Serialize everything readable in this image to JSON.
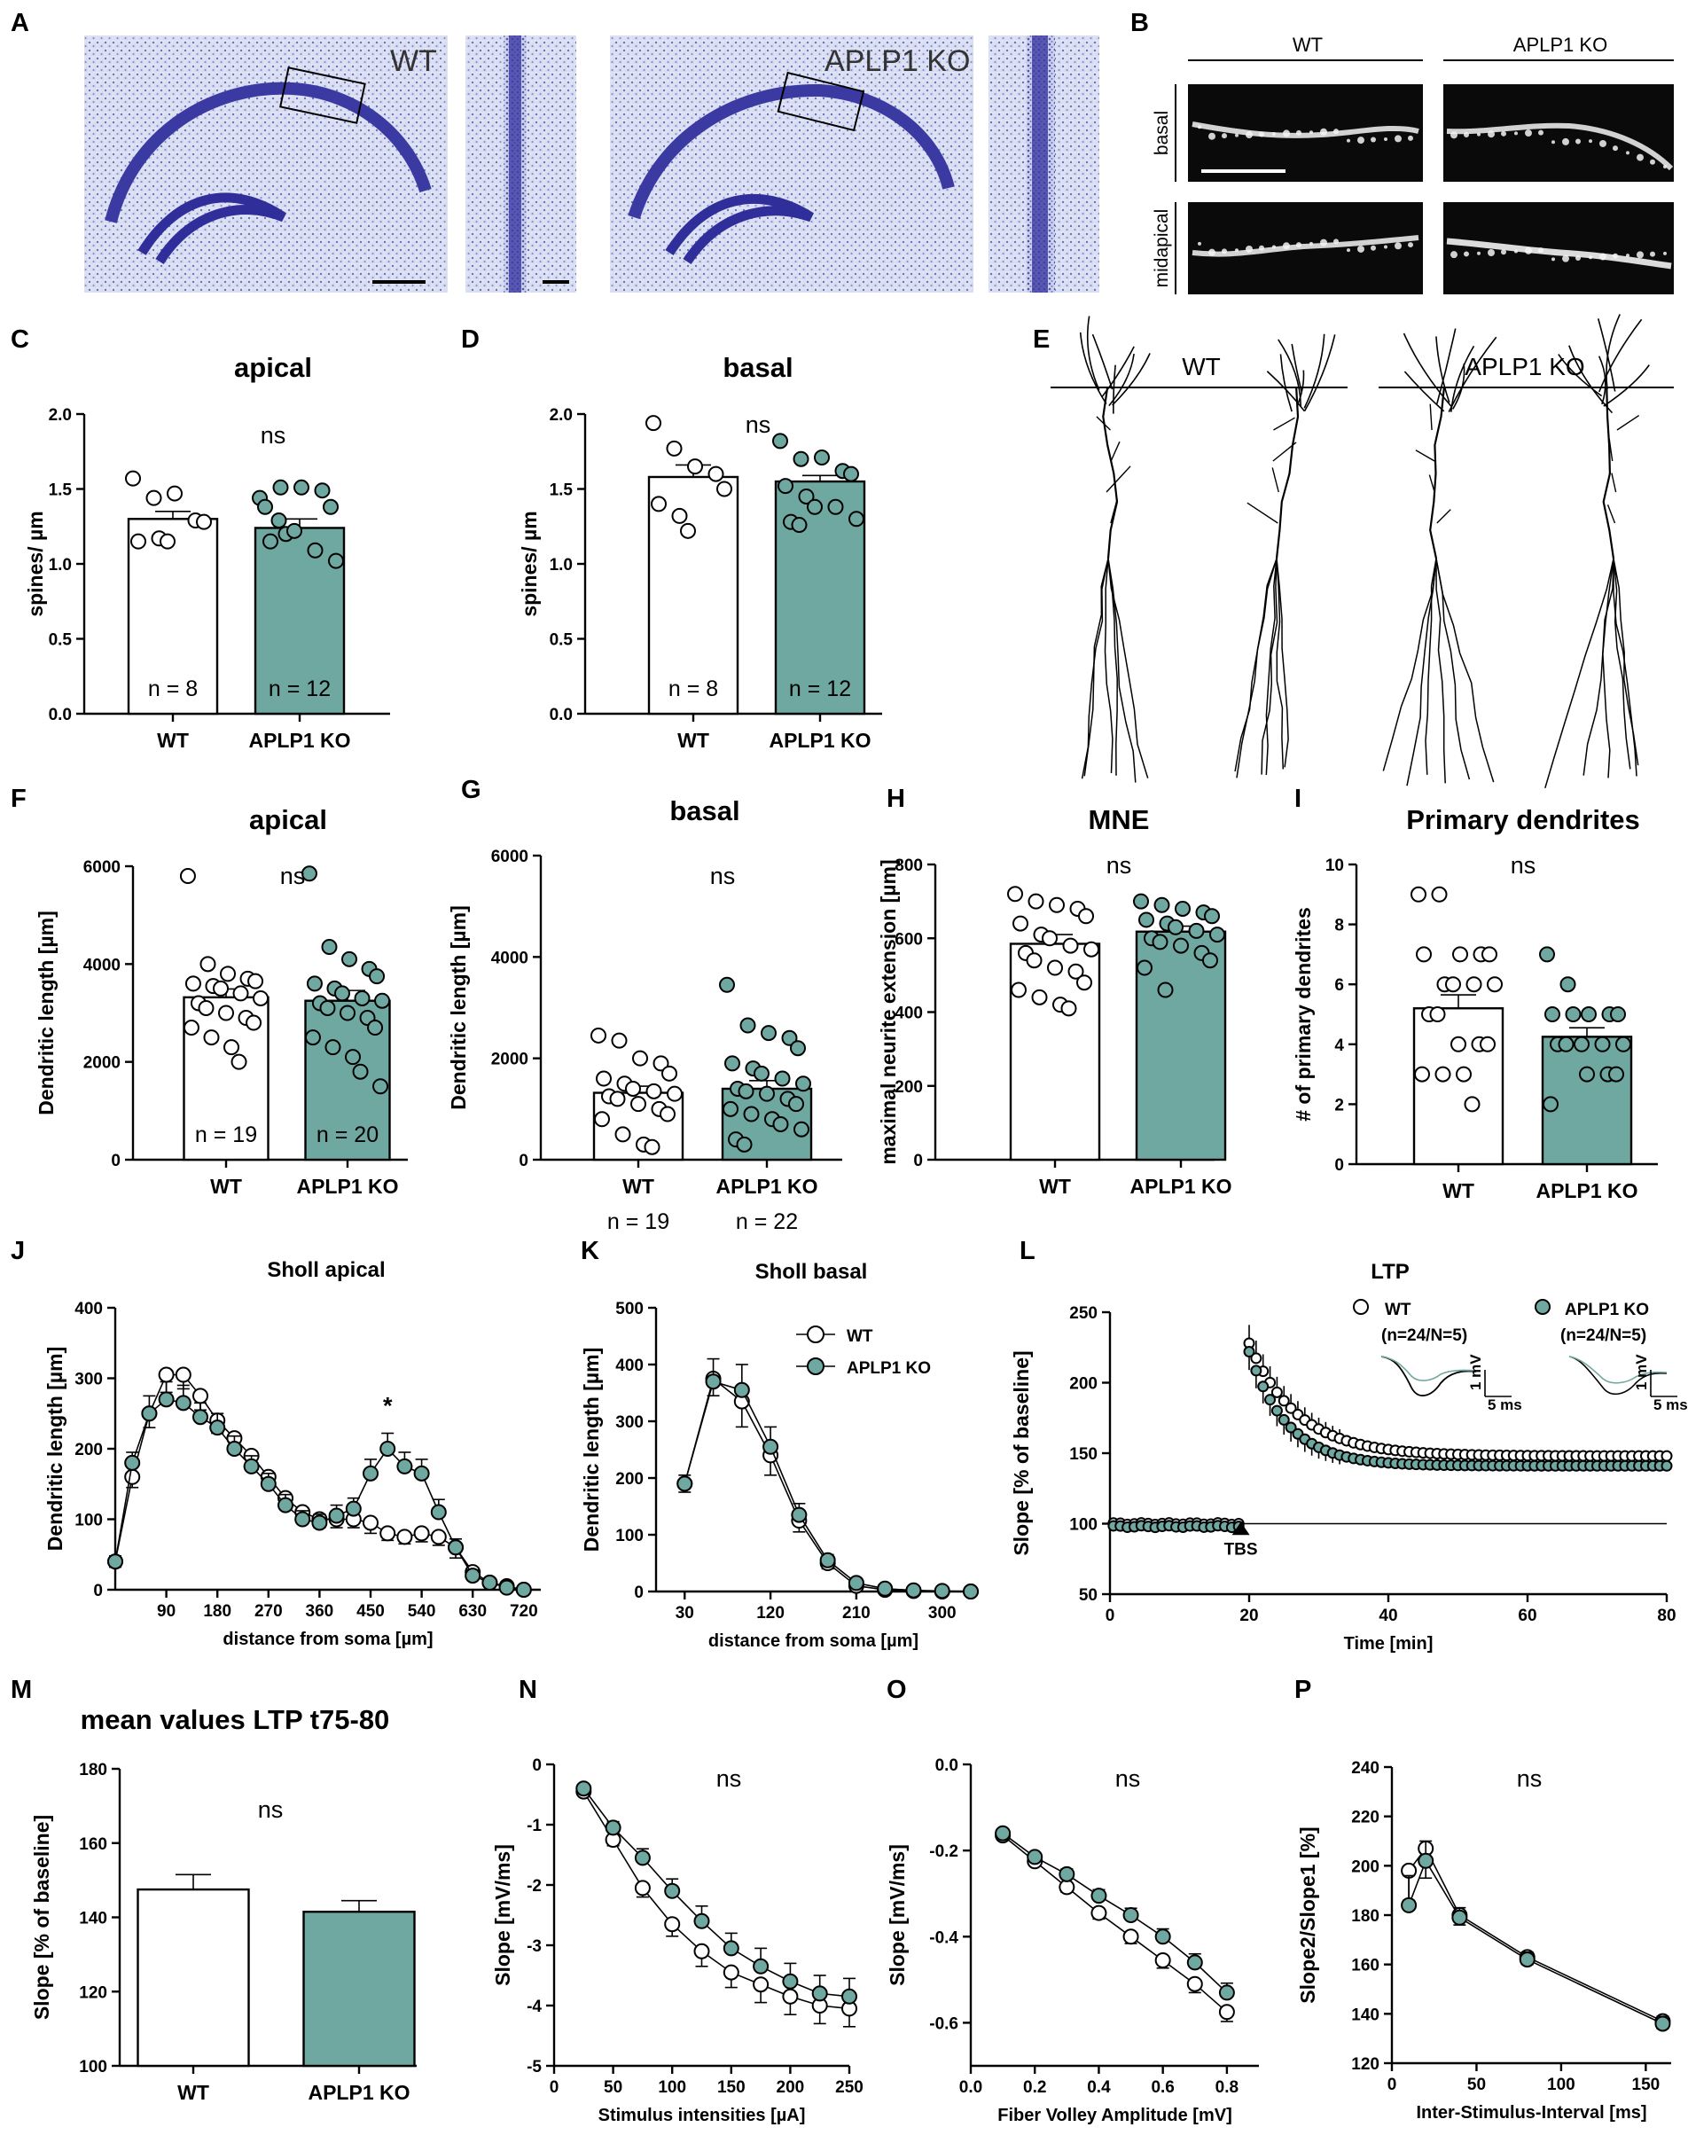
{
  "figure": {
    "panel_labels": [
      "A",
      "B",
      "C",
      "D",
      "E",
      "F",
      "G",
      "H",
      "I",
      "J",
      "K",
      "L",
      "M",
      "N",
      "O",
      "P"
    ],
    "colors": {
      "wt": "#ffffff",
      "ko": "#6fa8a1",
      "nissl": "#3b3aa3",
      "nissl_bg": "#dfe3f3"
    },
    "panelA": {
      "wt_label": "WT",
      "ko_label": "APLP1 KO"
    },
    "panelB": {
      "col_wt": "WT",
      "col_ko": "APLP1 KO",
      "row_basal": "basal",
      "row_midapical": "midapical"
    },
    "panelE": {
      "wt_label": "WT",
      "ko_label": "APLP1 KO"
    },
    "common": {
      "wt": "WT",
      "ko": "APLP1 KO",
      "ns": "ns"
    }
  },
  "chart_data": [
    {
      "id": "C",
      "type": "bar",
      "title": "apical",
      "ylabel": "spines/ µm",
      "categories": [
        "WT",
        "APLP1 KO"
      ],
      "values": [
        1.3,
        1.24
      ],
      "sem": [
        0.05,
        0.06
      ],
      "ylim": [
        0,
        2.0
      ],
      "yticks": [
        "0.0",
        "0.5",
        "1.0",
        "1.5",
        "2.0"
      ],
      "n_labels": [
        "n = 8",
        "n = 12"
      ],
      "annotation": "ns",
      "points": [
        [
          1.57,
          1.44,
          1.47,
          1.29,
          1.28,
          1.15,
          1.17,
          1.15
        ],
        [
          1.44,
          1.51,
          1.51,
          1.49,
          1.38,
          1.38,
          1.2,
          1.22,
          1.09,
          1.02,
          1.15,
          1.29
        ]
      ]
    },
    {
      "id": "D",
      "type": "bar",
      "title": "basal",
      "ylabel": "spines/ µm",
      "categories": [
        "WT",
        "APLP1 KO"
      ],
      "values": [
        1.58,
        1.55
      ],
      "sem": [
        0.08,
        0.04
      ],
      "ylim": [
        0,
        2.0
      ],
      "yticks": [
        "0.0",
        "0.5",
        "1.0",
        "1.5",
        "2.0"
      ],
      "n_labels": [
        "n = 8",
        "n = 12"
      ],
      "annotation": "ns",
      "points": [
        [
          1.94,
          1.77,
          1.65,
          1.6,
          1.5,
          1.4,
          1.32,
          1.22
        ],
        [
          1.82,
          1.7,
          1.71,
          1.62,
          1.6,
          1.52,
          1.45,
          1.38,
          1.38,
          1.3,
          1.28,
          1.26
        ]
      ]
    },
    {
      "id": "F",
      "type": "bar",
      "title": "apical",
      "ylabel": "Dendritic length [µm]",
      "categories": [
        "WT",
        "APLP1 KO"
      ],
      "values": [
        3320,
        3250
      ],
      "sem": [
        170,
        210
      ],
      "ylim": [
        0,
        6000
      ],
      "yticks": [
        "0",
        "2000",
        "4000",
        "6000"
      ],
      "n_labels": [
        "n = 19",
        "n = 20"
      ],
      "annotation": "ns",
      "points": [
        [
          5800,
          4000,
          3800,
          3700,
          3650,
          3600,
          3550,
          3500,
          3400,
          3300,
          3200,
          3100,
          3000,
          2900,
          2800,
          2700,
          2500,
          2300,
          2000
        ],
        [
          5850,
          4350,
          4100,
          3900,
          3750,
          3600,
          3500,
          3400,
          3300,
          3250,
          3200,
          3100,
          3000,
          2900,
          2700,
          2500,
          2300,
          2100,
          1800,
          1500
        ]
      ]
    },
    {
      "id": "G",
      "type": "bar",
      "title": "basal",
      "ylabel": "Dendritic length [µm]",
      "categories": [
        "WT",
        "APLP1 KO"
      ],
      "values": [
        1320,
        1400
      ],
      "sem": [
        130,
        160
      ],
      "ylim": [
        0,
        6000
      ],
      "yticks": [
        "0",
        "2000",
        "4000",
        "6000"
      ],
      "n_below": [
        "n = 19",
        "n = 22"
      ],
      "annotation": "ns",
      "points": [
        [
          2450,
          2350,
          2000,
          1900,
          1700,
          1600,
          1500,
          1400,
          1350,
          1300,
          1250,
          1200,
          1100,
          1000,
          900,
          800,
          500,
          300,
          250
        ],
        [
          3450,
          2650,
          2500,
          2400,
          2200,
          1900,
          1800,
          1700,
          1600,
          1500,
          1400,
          1350,
          1300,
          1200,
          1100,
          1000,
          900,
          800,
          700,
          600,
          400,
          300
        ]
      ]
    },
    {
      "id": "H",
      "type": "bar",
      "title": "MNE",
      "ylabel": "maximal neurite extension [µm]",
      "categories": [
        "WT",
        "APLP1 KO"
      ],
      "values": [
        585,
        618
      ],
      "sem": [
        25,
        15
      ],
      "ylim": [
        0,
        800
      ],
      "yticks": [
        "0",
        "200",
        "400",
        "600",
        "800"
      ],
      "annotation": "ns",
      "points": [
        [
          720,
          700,
          690,
          680,
          660,
          640,
          610,
          600,
          580,
          570,
          560,
          540,
          520,
          510,
          480,
          460,
          440,
          420,
          410
        ],
        [
          700,
          690,
          680,
          670,
          660,
          650,
          640,
          630,
          620,
          610,
          600,
          590,
          580,
          560,
          540,
          520,
          460
        ]
      ]
    },
    {
      "id": "I",
      "type": "bar",
      "title": "Primary dendrites",
      "ylabel": "# of primary dendrites",
      "categories": [
        "WT",
        "APLP1 KO"
      ],
      "values": [
        5.2,
        4.25
      ],
      "sem": [
        0.45,
        0.3
      ],
      "ylim": [
        0,
        10
      ],
      "yticks": [
        "0",
        "2",
        "4",
        "6",
        "8",
        "10"
      ],
      "annotation": "ns",
      "points": [
        [
          9,
          9,
          7,
          7,
          7,
          7,
          6,
          6,
          6,
          6,
          5,
          5,
          4,
          4,
          4,
          3,
          3,
          3,
          2
        ],
        [
          7,
          6,
          5,
          5,
          5,
          5,
          5,
          4,
          4,
          4,
          4,
          4,
          3,
          3,
          3,
          2
        ]
      ]
    },
    {
      "id": "J",
      "type": "line",
      "title": "Sholl apical",
      "xlabel": "distance from soma [µm]",
      "ylabel": "Dendritic length [µm]",
      "xlim": [
        0,
        750
      ],
      "ylim": [
        0,
        400
      ],
      "xticks": [
        "90",
        "180",
        "270",
        "360",
        "450",
        "540",
        "630",
        "720"
      ],
      "yticks": [
        "0",
        "100",
        "200",
        "300",
        "400"
      ],
      "annotation": "*",
      "x": [
        0,
        30,
        60,
        90,
        120,
        150,
        180,
        210,
        240,
        270,
        300,
        330,
        360,
        390,
        420,
        450,
        480,
        510,
        540,
        570,
        600,
        630,
        660,
        690,
        720
      ],
      "series": [
        {
          "name": "WT",
          "values": [
            40,
            160,
            250,
            305,
            305,
            275,
            240,
            215,
            190,
            160,
            130,
            110,
            100,
            100,
            100,
            95,
            80,
            75,
            80,
            75,
            60,
            25,
            10,
            5,
            0
          ],
          "sem": [
            8,
            15,
            20,
            25,
            20,
            20,
            18,
            18,
            15,
            15,
            15,
            12,
            12,
            12,
            12,
            15,
            10,
            10,
            12,
            12,
            15,
            8,
            5,
            3,
            0
          ]
        },
        {
          "name": "APLP1 KO",
          "values": [
            40,
            180,
            250,
            270,
            265,
            245,
            230,
            200,
            175,
            150,
            120,
            100,
            95,
            105,
            115,
            165,
            200,
            175,
            165,
            110,
            60,
            20,
            10,
            3,
            0
          ],
          "sem": [
            8,
            15,
            25,
            25,
            25,
            20,
            20,
            18,
            15,
            15,
            15,
            12,
            12,
            15,
            15,
            20,
            22,
            20,
            20,
            18,
            12,
            8,
            5,
            2,
            0
          ]
        }
      ]
    },
    {
      "id": "K",
      "type": "line",
      "title": "Sholl basal",
      "xlabel": "distance from soma [µm]",
      "ylabel": "Dendritic length [µm]",
      "xlim": [
        0,
        330
      ],
      "ylim": [
        0,
        500
      ],
      "xticks": [
        "30",
        "120",
        "210",
        "300"
      ],
      "yticks": [
        "0",
        "100",
        "200",
        "300",
        "400",
        "500"
      ],
      "legend": [
        "WT",
        "APLP1 KO"
      ],
      "x": [
        30,
        60,
        90,
        120,
        150,
        180,
        210,
        240,
        270,
        300,
        330
      ],
      "series": [
        {
          "name": "WT",
          "values": [
            190,
            375,
            335,
            240,
            125,
            50,
            10,
            3,
            1,
            0,
            0
          ],
          "sem": [
            15,
            30,
            45,
            35,
            20,
            10,
            4,
            2,
            0,
            0,
            0
          ]
        },
        {
          "name": "APLP1 KO",
          "values": [
            190,
            370,
            355,
            255,
            135,
            55,
            15,
            5,
            2,
            1,
            0
          ],
          "sem": [
            15,
            40,
            45,
            35,
            20,
            10,
            4,
            2,
            0,
            0,
            0
          ]
        }
      ]
    },
    {
      "id": "L",
      "type": "line",
      "title": "LTP",
      "xlabel": "Time [min]",
      "ylabel": "Slope [% of baseline]",
      "xlim": [
        0,
        80
      ],
      "ylim": [
        50,
        250
      ],
      "xticks": [
        "0",
        "20",
        "40",
        "60",
        "80"
      ],
      "yticks": [
        "50",
        "100",
        "150",
        "200",
        "250"
      ],
      "annotation": "TBS",
      "legend": [
        "WT",
        "APLP1 KO"
      ],
      "legend_n": [
        "(n=24/N=5)",
        "(n=24/N=5)"
      ],
      "scale_v": "1 mV",
      "scale_t": "5 ms",
      "series": [
        {
          "name": "WT",
          "baseline": 100,
          "peak": 228,
          "plateau": 148
        },
        {
          "name": "APLP1 KO",
          "baseline": 98,
          "peak": 222,
          "plateau": 141
        }
      ]
    },
    {
      "id": "M",
      "type": "bar",
      "title": "mean values LTP t75-80",
      "ylabel": "Slope [% of baseline]",
      "categories": [
        "WT",
        "APLP1 KO"
      ],
      "values": [
        147.5,
        141.5
      ],
      "sem": [
        4,
        3
      ],
      "ylim": [
        100,
        180
      ],
      "yticks": [
        "100",
        "120",
        "140",
        "160",
        "180"
      ],
      "annotation": "ns"
    },
    {
      "id": "N",
      "type": "line",
      "xlabel": "Stimulus intensities [µA]",
      "ylabel": "Slope [mV/ms]",
      "xlim": [
        0,
        250
      ],
      "ylim": [
        -5,
        0
      ],
      "xticks": [
        "0",
        "50",
        "100",
        "150",
        "200",
        "250"
      ],
      "yticks": [
        "0",
        "-1",
        "-2",
        "-3",
        "-4",
        "-5"
      ],
      "annotation": "ns",
      "x": [
        25,
        50,
        75,
        100,
        125,
        150,
        175,
        200,
        225,
        250
      ],
      "series": [
        {
          "name": "WT",
          "values": [
            -0.45,
            -1.25,
            -2.05,
            -2.65,
            -3.1,
            -3.45,
            -3.65,
            -3.85,
            -4.0,
            -4.05
          ],
          "sem": [
            0.05,
            0.1,
            0.15,
            0.2,
            0.25,
            0.25,
            0.3,
            0.3,
            0.3,
            0.3
          ]
        },
        {
          "name": "APLP1 KO",
          "values": [
            -0.4,
            -1.05,
            -1.55,
            -2.1,
            -2.6,
            -3.05,
            -3.35,
            -3.6,
            -3.8,
            -3.85
          ],
          "sem": [
            0.05,
            0.1,
            0.15,
            0.2,
            0.25,
            0.25,
            0.3,
            0.3,
            0.3,
            0.3
          ]
        }
      ]
    },
    {
      "id": "O",
      "type": "line",
      "xlabel": "Fiber Volley Amplitude [mV]",
      "ylabel": "Slope [mV/ms]",
      "xlim": [
        0,
        0.9
      ],
      "ylim": [
        -0.7,
        0
      ],
      "xticks": [
        "0.0",
        "0.2",
        "0.4",
        "0.6",
        "0.8"
      ],
      "yticks": [
        "0.0",
        "-0.2",
        "-0.4",
        "-0.6"
      ],
      "annotation": "ns",
      "x": [
        0.1,
        0.2,
        0.3,
        0.4,
        0.5,
        0.6,
        0.7,
        0.8
      ],
      "series": [
        {
          "name": "WT",
          "values": [
            -0.165,
            -0.225,
            -0.285,
            -0.345,
            -0.4,
            -0.455,
            -0.51,
            -0.575
          ],
          "sem": [
            0.01,
            0.01,
            0.012,
            0.014,
            0.016,
            0.018,
            0.02,
            0.022
          ]
        },
        {
          "name": "APLP1 KO",
          "values": [
            -0.16,
            -0.215,
            -0.255,
            -0.305,
            -0.35,
            -0.4,
            -0.46,
            -0.53
          ],
          "sem": [
            0.01,
            0.01,
            0.012,
            0.014,
            0.016,
            0.018,
            0.02,
            0.022
          ]
        }
      ]
    },
    {
      "id": "P",
      "type": "line",
      "xlabel": "Inter-Stimulus-Interval [ms]",
      "ylabel": "Slope2/Slope1 [%]",
      "xlim": [
        0,
        165
      ],
      "ylim": [
        120,
        240
      ],
      "xticks": [
        "0",
        "50",
        "100",
        "150"
      ],
      "yticks": [
        "120",
        "140",
        "160",
        "180",
        "200",
        "220",
        "240"
      ],
      "annotation": "ns",
      "x": [
        10,
        20,
        40,
        80,
        160
      ],
      "series": [
        {
          "name": "WT",
          "values": [
            198,
            207,
            180,
            163,
            137
          ],
          "sem": [
            12,
            12,
            4,
            3,
            3
          ]
        },
        {
          "name": "APLP1 KO",
          "values": [
            184,
            202,
            179,
            162,
            136
          ],
          "sem": [
            12,
            8,
            4,
            3,
            3
          ]
        }
      ]
    }
  ]
}
